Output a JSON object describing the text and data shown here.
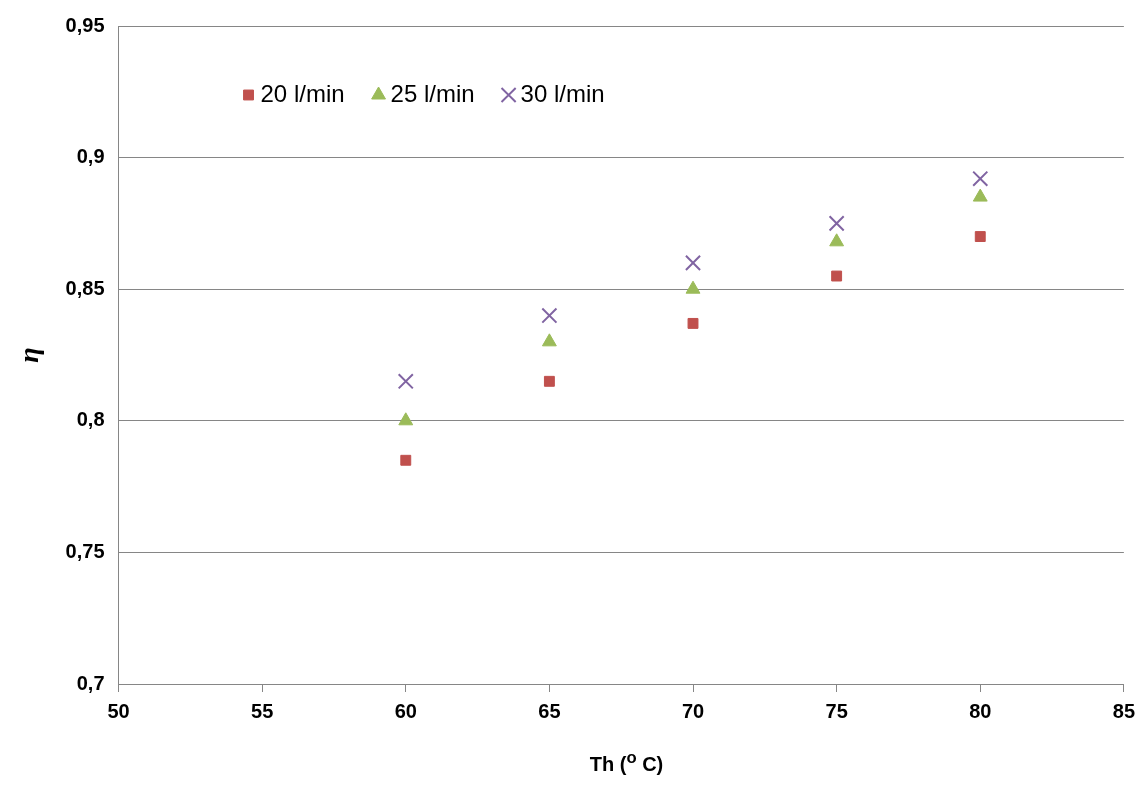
{
  "chart_data": {
    "type": "scatter",
    "xlabel": "Th  ($^{o}$ C)",
    "ylabel": "η",
    "x": [
      60,
      65,
      70,
      75,
      80
    ],
    "series": [
      {
        "name": "20 l/min",
        "color": "#c0504d",
        "marker": "square",
        "values": [
          0.785,
          0.815,
          0.837,
          0.855,
          0.87
        ]
      },
      {
        "name": "25 l/min",
        "color": "#9bbb59",
        "marker": "triangle",
        "values": [
          0.8,
          0.83,
          0.85,
          0.868,
          0.885
        ]
      },
      {
        "name": "30 l/min",
        "color": "#8064a2",
        "marker": "cross",
        "values": [
          0.815,
          0.84,
          0.86,
          0.875,
          0.892
        ]
      }
    ],
    "xlim": [
      50,
      85
    ],
    "xticks": [
      50,
      55,
      60,
      65,
      70,
      75,
      80,
      85
    ],
    "ylim": [
      0.7,
      0.95
    ],
    "yticks": [
      {
        "value": 0.7,
        "label": "0,7"
      },
      {
        "value": 0.75,
        "label": "0,75"
      },
      {
        "value": 0.8,
        "label": "0,8"
      },
      {
        "value": 0.85,
        "label": "0,85"
      },
      {
        "value": 0.9,
        "label": "0,9"
      },
      {
        "value": 0.95,
        "label": "0,95"
      }
    ],
    "grid": "y",
    "legend": "top left"
  }
}
